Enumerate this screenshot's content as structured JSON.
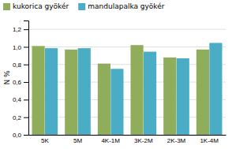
{
  "chart_data": {
    "type": "bar",
    "y_label": "N %",
    "categories": [
      "5K",
      "5M",
      "4K-1M",
      "3K-2M",
      "2K-3M",
      "1K-4M"
    ],
    "series": [
      {
        "name": "kukorica gyökér",
        "color": "#8fad5a",
        "values": [
          1.01,
          0.97,
          0.81,
          1.02,
          0.88,
          0.97
        ]
      },
      {
        "name": "mandulapalka gyökér",
        "color": "#4bacc6",
        "values": [
          0.985,
          0.985,
          0.75,
          0.945,
          0.87,
          1.045
        ]
      }
    ],
    "ylim": [
      0,
      1.3
    ],
    "yticks": [
      {
        "value": 0.0,
        "label": "0,0"
      },
      {
        "value": 0.2,
        "label": "0,2"
      },
      {
        "value": 0.4,
        "label": "0,4"
      },
      {
        "value": 0.6,
        "label": "0,6"
      },
      {
        "value": 0.8,
        "label": "0,8"
      },
      {
        "value": 1.0,
        "label": "1,0"
      },
      {
        "value": 1.2,
        "label": "1,2"
      }
    ],
    "grid": true,
    "legend": "top-left"
  }
}
